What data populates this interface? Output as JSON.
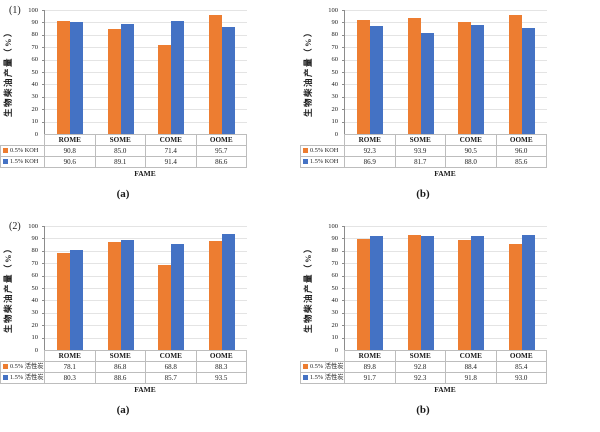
{
  "figure": {
    "colors": {
      "series_orange": "#ED7D31",
      "series_blue": "#4472C4",
      "gridline": "#e4e4e4",
      "axis": "#8c8c8c",
      "table_border": "#bdbdbd"
    }
  },
  "chart_data": [
    {
      "type": "bar",
      "panel_label": "(1)",
      "caption": "(a)",
      "ylabel": "生物柴油产量（%）",
      "xlabel": "FAME",
      "ylim": [
        0,
        100
      ],
      "ytick_step": 10,
      "grid": true,
      "legend_position": "table-below",
      "categories": [
        "ROME",
        "SOME",
        "COME",
        "OOME"
      ],
      "series": [
        {
          "name": "0.5% KOH",
          "color": "#ED7D31",
          "values": [
            90.8,
            85.0,
            71.4,
            95.7
          ]
        },
        {
          "name": "1.5% KOH",
          "color": "#4472C4",
          "values": [
            90.6,
            89.1,
            91.4,
            86.6
          ]
        }
      ]
    },
    {
      "type": "bar",
      "panel_label": "",
      "caption": "(b)",
      "ylabel": "生物柴油产量（%）",
      "xlabel": "FAME",
      "ylim": [
        0,
        100
      ],
      "ytick_step": 10,
      "grid": true,
      "legend_position": "table-below",
      "categories": [
        "ROME",
        "SOME",
        "COME",
        "OOME"
      ],
      "series": [
        {
          "name": "0.5% KOH",
          "color": "#ED7D31",
          "values": [
            92.3,
            93.9,
            90.5,
            96.0
          ]
        },
        {
          "name": "1.5% KOH",
          "color": "#4472C4",
          "values": [
            86.9,
            81.7,
            88.0,
            85.6
          ]
        }
      ]
    },
    {
      "type": "bar",
      "panel_label": "(2)",
      "caption": "(a)",
      "ylabel": "生物柴油产量（%）",
      "xlabel": "FAME",
      "ylim": [
        0,
        100
      ],
      "ytick_step": 10,
      "grid": true,
      "legend_position": "table-below",
      "categories": [
        "ROME",
        "SOME",
        "COME",
        "OOME"
      ],
      "series": [
        {
          "name": "0.5% 活性炭",
          "color": "#ED7D31",
          "values": [
            78.1,
            86.8,
            68.8,
            88.3
          ]
        },
        {
          "name": "1.5% 活性炭",
          "color": "#4472C4",
          "values": [
            80.3,
            88.6,
            85.7,
            93.5
          ]
        }
      ]
    },
    {
      "type": "bar",
      "panel_label": "",
      "caption": "(b)",
      "ylabel": "生物柴油产量（%）",
      "xlabel": "FAME",
      "ylim": [
        0,
        100
      ],
      "ytick_step": 10,
      "grid": true,
      "legend_position": "table-below",
      "categories": [
        "ROME",
        "SOME",
        "COME",
        "OOME"
      ],
      "series": [
        {
          "name": "0.5% 活性炭",
          "color": "#ED7D31",
          "values": [
            89.8,
            92.8,
            88.4,
            85.4
          ]
        },
        {
          "name": "1.5% 活性炭",
          "color": "#4472C4",
          "values": [
            91.7,
            92.3,
            91.8,
            93.0
          ]
        }
      ]
    }
  ]
}
